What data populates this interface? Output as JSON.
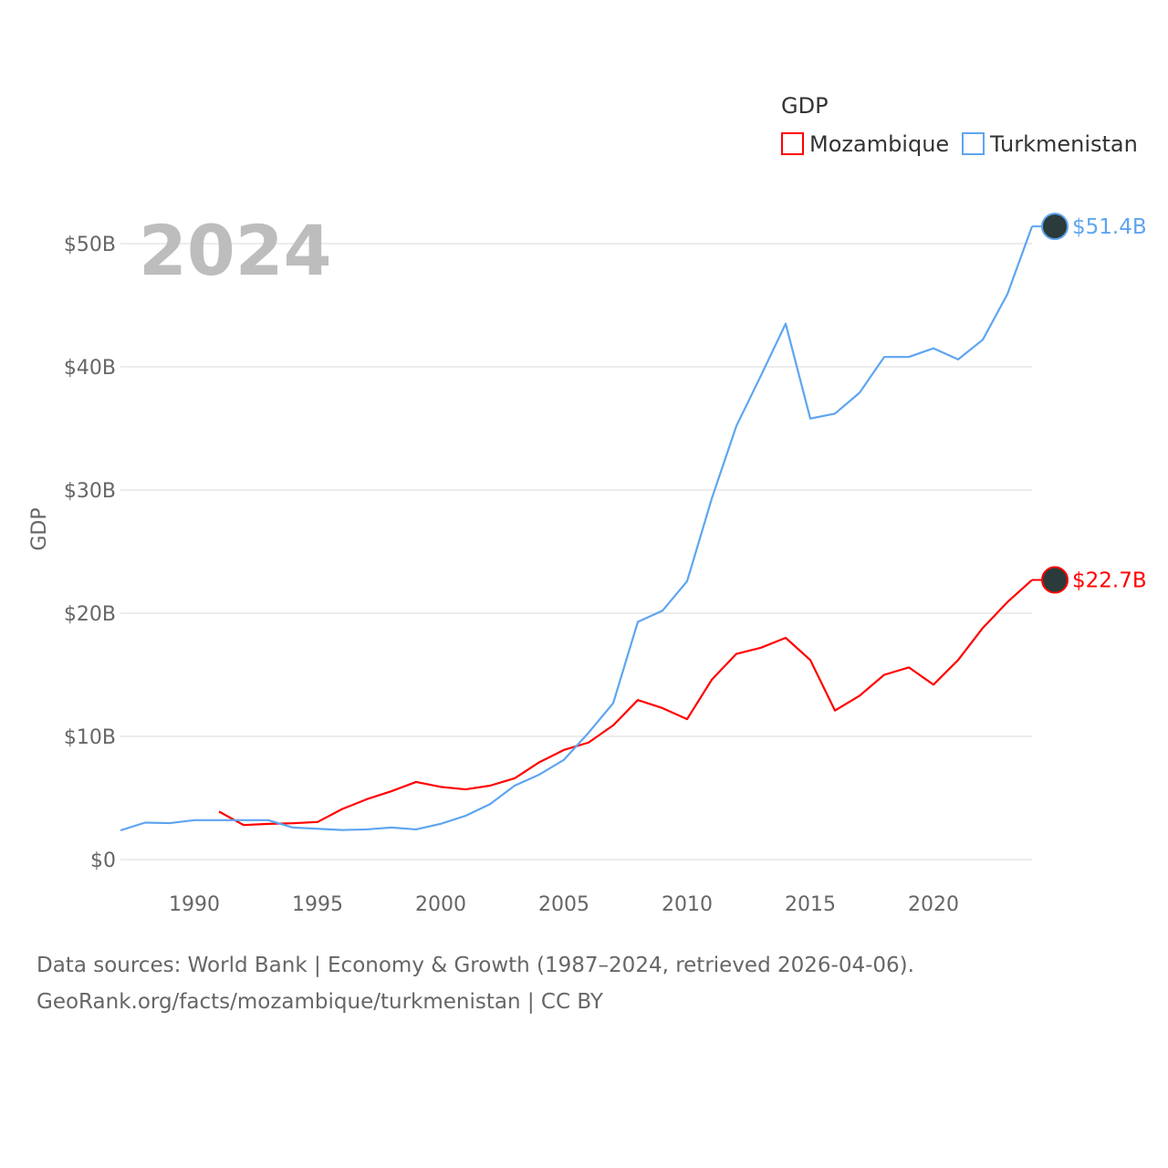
{
  "chart_data": {
    "type": "line",
    "title": "",
    "year_label": "2024",
    "xlabel": "",
    "ylabel": "GDP",
    "xlim": [
      1987,
      2024
    ],
    "ylim": [
      0,
      50
    ],
    "y_unit": "billions USD",
    "grid": true,
    "legend": {
      "title": "GDP",
      "placement": "top-right"
    },
    "x_ticks": [
      "1990",
      "1995",
      "2000",
      "2005",
      "2010",
      "2015",
      "2020"
    ],
    "x_tick_values": [
      1990,
      1995,
      2000,
      2005,
      2010,
      2015,
      2020
    ],
    "y_ticks": [
      "$0",
      "$10B",
      "$20B",
      "$30B",
      "$40B",
      "$50B"
    ],
    "y_tick_values": [
      0,
      10,
      20,
      30,
      40,
      50
    ],
    "series": [
      {
        "name": "Mozambique",
        "color": "#ff0000",
        "end_label": "$22.7B",
        "x": [
          1991,
          1992,
          1993,
          1994,
          1995,
          1996,
          1997,
          1998,
          1999,
          2000,
          2001,
          2002,
          2003,
          2004,
          2005,
          2006,
          2007,
          2008,
          2009,
          2010,
          2011,
          2012,
          2013,
          2014,
          2015,
          2016,
          2017,
          2018,
          2019,
          2020,
          2021,
          2022,
          2023,
          2024
        ],
        "values": [
          3.9,
          2.8,
          2.9,
          2.95,
          3.05,
          4.1,
          4.9,
          5.55,
          6.3,
          5.9,
          5.7,
          6.0,
          6.6,
          7.9,
          8.9,
          9.5,
          10.9,
          12.95,
          12.3,
          11.4,
          14.6,
          16.7,
          17.2,
          18.0,
          16.2,
          12.1,
          13.3,
          15.0,
          15.6,
          14.2,
          16.2,
          18.8,
          20.9,
          22.7
        ]
      },
      {
        "name": "Turkmenistan",
        "color": "#5ea5f0",
        "end_label": "$51.4B",
        "x": [
          1987,
          1988,
          1989,
          1990,
          1991,
          1992,
          1993,
          1994,
          1995,
          1996,
          1997,
          1998,
          1999,
          2000,
          2001,
          2002,
          2003,
          2004,
          2005,
          2006,
          2007,
          2008,
          2009,
          2010,
          2011,
          2012,
          2013,
          2014,
          2015,
          2016,
          2017,
          2018,
          2019,
          2020,
          2021,
          2022,
          2023,
          2024
        ],
        "values": [
          2.37,
          3.0,
          2.96,
          3.2,
          3.2,
          3.2,
          3.2,
          2.6,
          2.5,
          2.4,
          2.45,
          2.6,
          2.45,
          2.9,
          3.55,
          4.5,
          6.0,
          6.9,
          8.1,
          10.3,
          12.7,
          19.3,
          20.2,
          22.6,
          29.3,
          35.2,
          39.3,
          43.5,
          35.8,
          36.2,
          37.9,
          40.8,
          40.8,
          41.5,
          40.6,
          42.2,
          45.9,
          51.4
        ]
      }
    ]
  },
  "footer": {
    "line1": "Data sources: World Bank | Economy & Growth (1987–2024, retrieved 2026-04-06).",
    "line2": "GeoRank.org/facts/mozambique/turkmenistan | CC BY"
  }
}
